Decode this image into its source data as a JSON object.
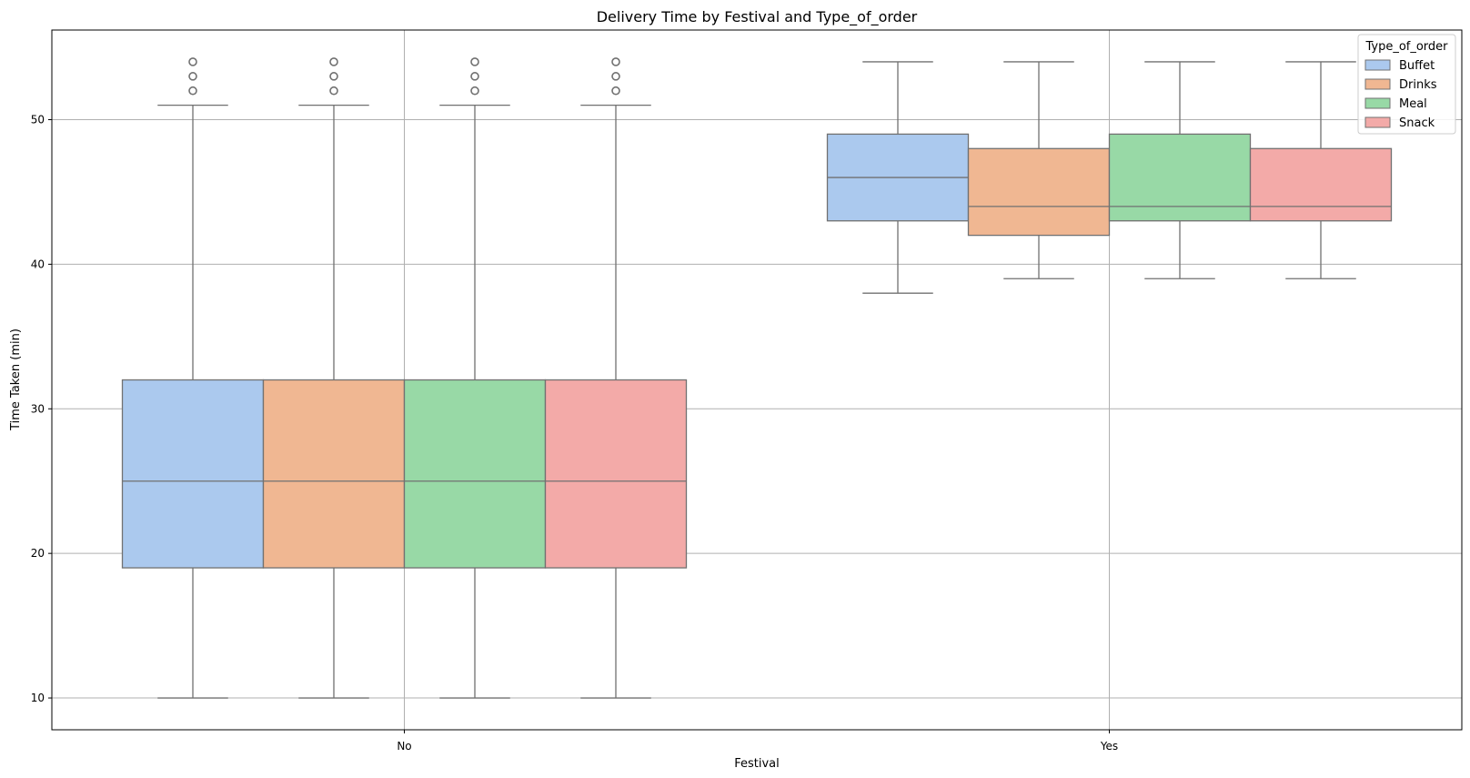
{
  "chart_data": {
    "type": "box",
    "title": "Delivery Time by Festival and Type_of_order",
    "xlabel": "Festival",
    "ylabel": "Time Taken (min)",
    "categories": [
      "No",
      "Yes"
    ],
    "ylim": [
      7.8,
      56.2
    ],
    "yticks": [
      10,
      20,
      30,
      40,
      50
    ],
    "grid": true,
    "legend": {
      "title": "Type_of_order",
      "placement": "top-right"
    },
    "series": [
      {
        "name": "Buffet",
        "color": "#abc9ee",
        "boxes": [
          {
            "whisker_low": 10,
            "q1": 19,
            "median": 25,
            "q3": 32,
            "whisker_high": 51,
            "outliers": [
              52,
              53,
              54
            ]
          },
          {
            "whisker_low": 38,
            "q1": 43,
            "median": 46,
            "q3": 49,
            "whisker_high": 54,
            "outliers": []
          }
        ]
      },
      {
        "name": "Drinks",
        "color": "#f0b792",
        "boxes": [
          {
            "whisker_low": 10,
            "q1": 19,
            "median": 25,
            "q3": 32,
            "whisker_high": 51,
            "outliers": [
              52,
              53,
              54
            ]
          },
          {
            "whisker_low": 39,
            "q1": 42,
            "median": 44,
            "q3": 48,
            "whisker_high": 54,
            "outliers": []
          }
        ]
      },
      {
        "name": "Meal",
        "color": "#98d9a6",
        "boxes": [
          {
            "whisker_low": 10,
            "q1": 19,
            "median": 25,
            "q3": 32,
            "whisker_high": 51,
            "outliers": [
              52,
              53,
              54
            ]
          },
          {
            "whisker_low": 39,
            "q1": 43,
            "median": 44,
            "q3": 49,
            "whisker_high": 54,
            "outliers": []
          }
        ]
      },
      {
        "name": "Snack",
        "color": "#f3aaa8",
        "boxes": [
          {
            "whisker_low": 10,
            "q1": 19,
            "median": 25,
            "q3": 32,
            "whisker_high": 51,
            "outliers": [
              52,
              53,
              54
            ]
          },
          {
            "whisker_low": 39,
            "q1": 43,
            "median": 44,
            "q3": 48,
            "whisker_high": 54,
            "outliers": []
          }
        ]
      }
    ]
  }
}
